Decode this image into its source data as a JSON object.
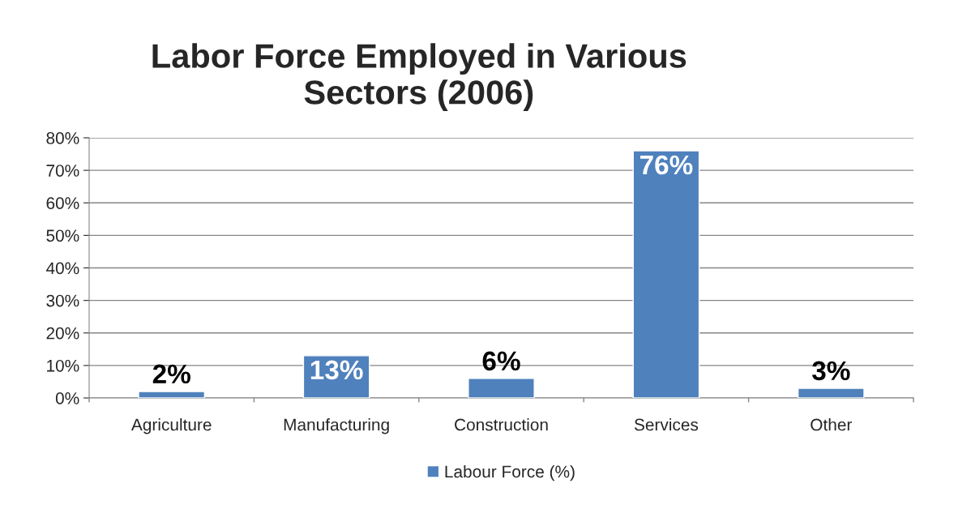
{
  "chart_data": {
    "type": "bar",
    "title": "Labor Force Employed in Various\nSectors (2006)",
    "categories": [
      "Agriculture",
      "Manufacturing",
      "Construction",
      "Services",
      "Other"
    ],
    "series": [
      {
        "name": "Labour Force (%)",
        "color": "#4f81bd",
        "values": [
          2,
          13,
          6,
          76,
          3
        ],
        "value_labels": [
          "2%",
          "13%",
          "6%",
          "76%",
          "3%"
        ]
      }
    ],
    "ylim": [
      0,
      80
    ],
    "yticks": [
      {
        "value": 0,
        "label": "0%"
      },
      {
        "value": 10,
        "label": "10%"
      },
      {
        "value": 20,
        "label": "20%"
      },
      {
        "value": 30,
        "label": "30%"
      },
      {
        "value": 40,
        "label": "40%"
      },
      {
        "value": 50,
        "label": "50%"
      },
      {
        "value": 60,
        "label": "60%"
      },
      {
        "value": 70,
        "label": "70%"
      },
      {
        "value": 80,
        "label": "80%"
      }
    ],
    "grid": "y",
    "legend": "bottom"
  }
}
